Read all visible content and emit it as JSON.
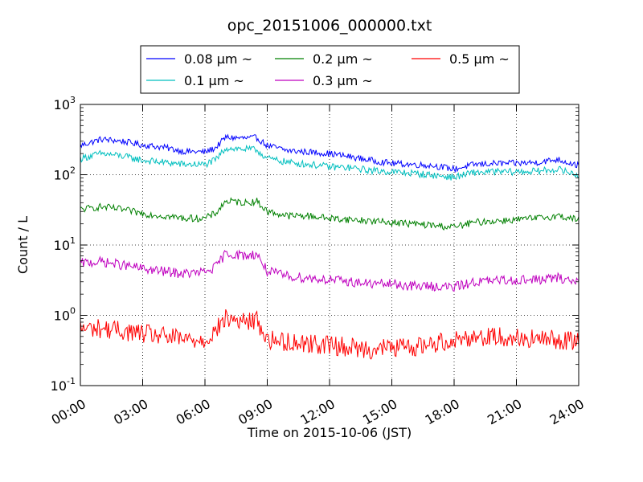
{
  "chart_data": {
    "type": "line",
    "title": "opc_20151006_000000.txt",
    "xlabel": "Time on 2015-10-06 (JST)",
    "ylabel": "Count / L",
    "x_ticks": [
      "00:00",
      "03:00",
      "06:00",
      "09:00",
      "12:00",
      "15:00",
      "18:00",
      "21:00",
      "24:00"
    ],
    "xlim_hours": [
      0,
      24
    ],
    "y_scale": "log",
    "ylim": [
      0.1,
      1000
    ],
    "y_ticks": [
      {
        "base": "10",
        "exp": "-1"
      },
      {
        "base": "10",
        "exp": "0"
      },
      {
        "base": "10",
        "exp": "1"
      },
      {
        "base": "10",
        "exp": "2"
      },
      {
        "base": "10",
        "exp": "3"
      }
    ],
    "grid": true,
    "legend_position": "top-center, above axes",
    "x_hours": [
      0,
      1,
      2,
      3,
      4,
      5,
      6,
      6.5,
      7,
      8,
      8.5,
      9,
      10,
      11,
      12,
      13,
      14,
      15,
      16,
      17,
      18,
      19,
      20,
      21,
      22,
      23,
      24
    ],
    "series": [
      {
        "name": "0.08 μm ~",
        "color": "#0000ff",
        "values": [
          260,
          320,
          300,
          265,
          245,
          215,
          210,
          240,
          340,
          330,
          335,
          260,
          220,
          210,
          200,
          180,
          160,
          145,
          140,
          135,
          120,
          140,
          145,
          145,
          150,
          165,
          135
        ]
      },
      {
        "name": "0.1 μm ~",
        "color": "#00bfbf",
        "values": [
          170,
          200,
          185,
          160,
          150,
          140,
          140,
          160,
          240,
          230,
          225,
          170,
          150,
          140,
          130,
          125,
          115,
          110,
          105,
          98,
          92,
          108,
          110,
          110,
          112,
          120,
          98
        ]
      },
      {
        "name": "0.2 μm ~",
        "color": "#008000",
        "values": [
          32,
          35,
          32,
          28,
          26,
          24,
          24,
          28,
          42,
          40,
          42,
          30,
          26,
          26,
          24,
          23,
          22,
          21,
          20,
          19,
          18,
          21,
          22,
          23,
          24,
          26,
          23
        ]
      },
      {
        "name": "0.3 μm ~",
        "color": "#bf00bf",
        "values": [
          5.5,
          5.8,
          5.2,
          4.6,
          4.2,
          3.9,
          4.1,
          4.8,
          7.6,
          7.0,
          7.5,
          4.2,
          3.6,
          3.4,
          3.2,
          3.0,
          2.8,
          2.8,
          2.6,
          2.6,
          2.5,
          3.0,
          3.1,
          3.2,
          3.2,
          3.4,
          3.0
        ]
      },
      {
        "name": "0.5 μm ~",
        "color": "#ff0000",
        "values": [
          0.65,
          0.65,
          0.6,
          0.55,
          0.5,
          0.45,
          0.45,
          0.6,
          0.9,
          0.8,
          0.85,
          0.45,
          0.42,
          0.4,
          0.38,
          0.35,
          0.33,
          0.35,
          0.35,
          0.4,
          0.45,
          0.5,
          0.5,
          0.48,
          0.45,
          0.45,
          0.42
        ]
      }
    ]
  }
}
